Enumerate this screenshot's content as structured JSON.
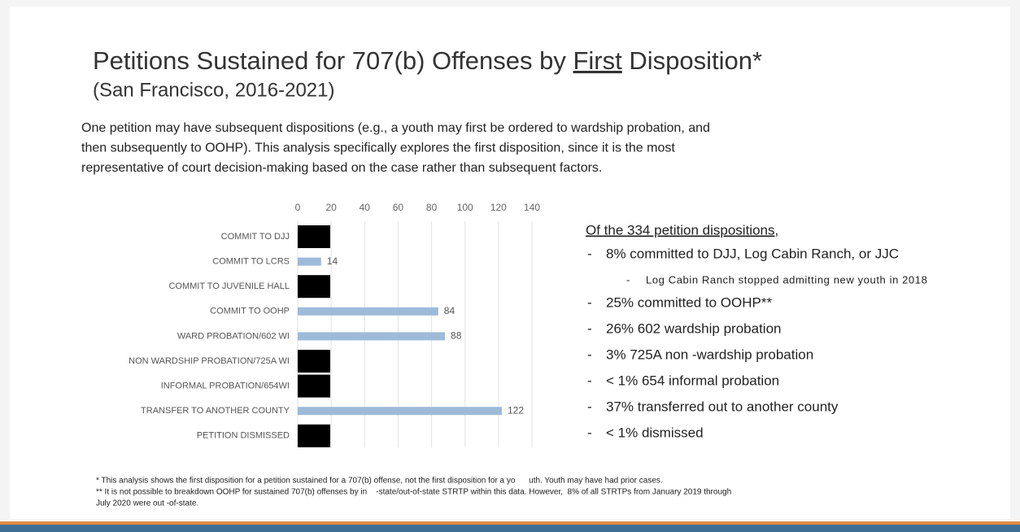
{
  "slide": {
    "title": [
      "Petitions Sustained for 707(b) Offenses by ",
      "First",
      " Disposition*"
    ],
    "subtitle": "(San Francisco, 2016-2021)",
    "intro": [
      "One petition may have subsequent dispositions (e.g., a youth may first be ordered to wardship probation, and",
      "then subsequently to OOHP). This analysis specifically explores the first disposition, since it is the most",
      "representative of court decision-making based on the case rather than subsequent factors."
    ],
    "summary_heading": "Of the 334 petition dispositions,",
    "summary": [
      {
        "text": "8% committed to DJJ, Log Cabin Ranch, or JJC",
        "level": 1
      },
      {
        "text": "Log Cabin Ranch stopped admitting new youth in 2018",
        "level": 2
      },
      {
        "text": "25% committed to OOHP**",
        "level": 1
      },
      {
        "text": "26% 602 wardship probation",
        "level": 1
      },
      {
        "text": "3% 725A non -wardship probation",
        "level": 1
      },
      {
        "text": "< 1% 654 informal probation",
        "level": 1
      },
      {
        "text": "37% transferred out to another county",
        "level": 1
      },
      {
        "text": "< 1% dismissed",
        "level": 1
      }
    ],
    "bullet": "-",
    "footnotes": [
      "* This analysis shows the first disposition for a petition sustained for a 707(b) offense, not the first disposition for a yo      uth. Youth may have had prior cases.",
      "** It is not possible to breakdown OOHP for sustained 707(b) offenses by in    -state/out-of-state STRTP within this data. However,  8% of all STRTPs from January 2019 through",
      "July 2020 were out -of-state."
    ]
  },
  "chart_data": {
    "type": "hbar",
    "categories": [
      "COMMIT TO DJJ",
      "COMMIT TO LCRS",
      "COMMIT TO JUVENILE HALL",
      "COMMIT TO OOHP",
      "WARD PROBATION/602 WI",
      "NON WARDSHIP PROBATION/725A WI",
      "INFORMAL PROBATION/654WI",
      "TRANSFER TO ANOTHER COUNTY",
      "PETITION DISMISSED"
    ],
    "values": [
      null,
      14,
      null,
      84,
      88,
      null,
      null,
      122,
      null
    ],
    "color": "#9dbbd9",
    "xlim": [
      0,
      140
    ],
    "xticks": [
      0,
      20,
      40,
      60,
      80,
      100,
      120,
      140
    ],
    "grid": true
  }
}
